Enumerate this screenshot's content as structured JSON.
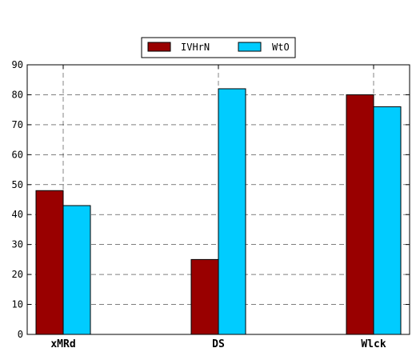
{
  "chart_data": {
    "type": "bar",
    "categories": [
      "xMRd",
      "DS",
      "Wlck"
    ],
    "series": [
      {
        "name": "IVHrN",
        "values": [
          48,
          25,
          80
        ],
        "color": "#990000"
      },
      {
        "name": "WtO",
        "values": [
          43,
          82,
          76
        ],
        "color": "#00ccff"
      }
    ],
    "ylim": [
      0,
      90
    ],
    "yticks": [
      0,
      10,
      20,
      30,
      40,
      50,
      60,
      70,
      80,
      90
    ],
    "grid": true,
    "grid_style": "dashed",
    "legend_position": "top-center",
    "title": "",
    "xlabel": "",
    "ylabel": ""
  }
}
